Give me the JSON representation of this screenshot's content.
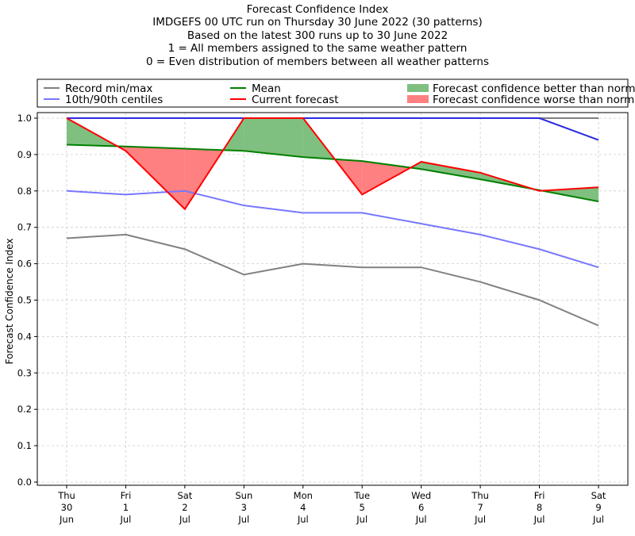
{
  "chart_data": {
    "type": "line",
    "title_lines": [
      "Forecast Confidence Index",
      "IMDGEFS 00 UTC run on Thursday 30 June 2022 (30 patterns)",
      "Based on the latest 300 runs up to 30 June 2022",
      "1 = All members assigned to the same weather pattern",
      "0 = Even distribution of members between all weather patterns"
    ],
    "ylabel": "Forecast Confidence Index",
    "xlabel": "",
    "ylim": [
      0.0,
      1.0
    ],
    "y_ticks": [
      "0.0",
      "0.1",
      "0.2",
      "0.3",
      "0.4",
      "0.5",
      "0.6",
      "0.7",
      "0.8",
      "0.9",
      "1.0"
    ],
    "x_labels": [
      [
        "Thu",
        "30",
        "Jun"
      ],
      [
        "Fri",
        "1",
        "Jul"
      ],
      [
        "Sat",
        "2",
        "Jul"
      ],
      [
        "Sun",
        "3",
        "Jul"
      ],
      [
        "Mon",
        "4",
        "Jul"
      ],
      [
        "Tue",
        "5",
        "Jul"
      ],
      [
        "Wed",
        "6",
        "Jul"
      ],
      [
        "Thu",
        "7",
        "Jul"
      ],
      [
        "Fri",
        "8",
        "Jul"
      ],
      [
        "Sat",
        "9",
        "Jul"
      ]
    ],
    "grid": true,
    "series": {
      "record_max": [
        1.0,
        1.0,
        1.0,
        1.0,
        1.0,
        1.0,
        1.0,
        1.0,
        1.0,
        1.0
      ],
      "record_min": [
        0.67,
        0.68,
        0.64,
        0.57,
        0.6,
        0.59,
        0.59,
        0.55,
        0.5,
        0.43
      ],
      "p90": [
        1.0,
        1.0,
        1.0,
        1.0,
        1.0,
        1.0,
        1.0,
        1.0,
        1.0,
        0.94
      ],
      "p10": [
        0.8,
        0.79,
        0.8,
        0.76,
        0.74,
        0.74,
        0.71,
        0.68,
        0.64,
        0.59
      ],
      "mean": [
        0.927,
        0.922,
        0.916,
        0.91,
        0.893,
        0.882,
        0.86,
        0.832,
        0.802,
        0.771
      ],
      "current": [
        1.0,
        0.91,
        0.75,
        1.0,
        1.0,
        0.79,
        0.88,
        0.85,
        0.8,
        0.81
      ]
    },
    "legend": {
      "placement": "top",
      "items": [
        {
          "label": "Record min/max",
          "kind": "line",
          "color": "#808080"
        },
        {
          "label": "10th/90th centiles",
          "kind": "line",
          "color": "#7777ff"
        },
        {
          "label": "Mean",
          "kind": "line",
          "color": "#008000"
        },
        {
          "label": "Current forecast",
          "kind": "line",
          "color": "#ff0000"
        },
        {
          "label": "Forecast confidence better than normal",
          "kind": "patch",
          "color": "#7fbf7f"
        },
        {
          "label": "Forecast confidence worse than normal",
          "kind": "patch",
          "color": "#ff8080"
        }
      ]
    },
    "colors": {
      "record": "#808080",
      "centiles": "#7777ff",
      "p90_line": "#2a2ae0",
      "mean": "#008000",
      "current": "#ff0000",
      "better_fill": "#7fbf7f",
      "worse_fill": "#ff8080",
      "grid": "#cccccc"
    }
  }
}
